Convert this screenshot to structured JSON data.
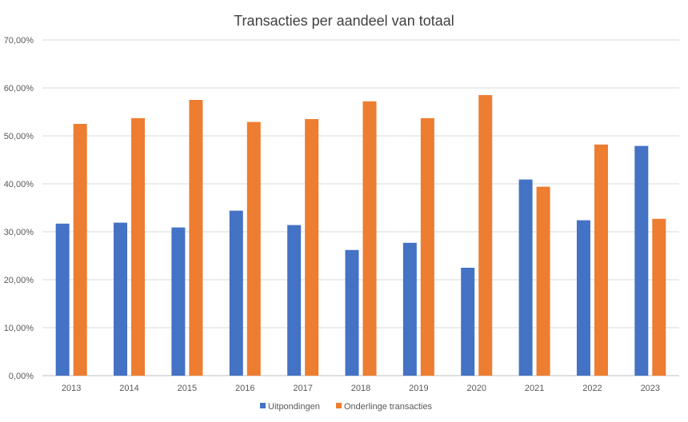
{
  "chart_data": {
    "type": "bar",
    "title": "Transacties per aandeel van totaal",
    "xlabel": "",
    "ylabel": "",
    "ylim": [
      0,
      70
    ],
    "y_ticks": [
      0,
      10,
      20,
      30,
      40,
      50,
      60,
      70
    ],
    "y_tick_labels": [
      "0,00%",
      "10,00%",
      "20,00%",
      "30,00%",
      "40,00%",
      "50,00%",
      "60,00%",
      "70,00%"
    ],
    "grid": true,
    "legend_position": "bottom",
    "categories": [
      "2013",
      "2014",
      "2015",
      "2016",
      "2017",
      "2018",
      "2019",
      "2020",
      "2021",
      "2022",
      "2023"
    ],
    "series": [
      {
        "name": "Uitpondingen",
        "color": "#4472C4",
        "values": [
          31.7,
          31.9,
          30.9,
          34.4,
          31.4,
          26.2,
          27.7,
          22.5,
          40.9,
          32.4,
          47.9
        ]
      },
      {
        "name": "Onderlinge transacties",
        "color": "#ED7D31",
        "values": [
          52.5,
          53.7,
          57.5,
          52.9,
          53.5,
          57.2,
          53.7,
          58.5,
          39.4,
          48.2,
          32.7
        ]
      }
    ]
  }
}
